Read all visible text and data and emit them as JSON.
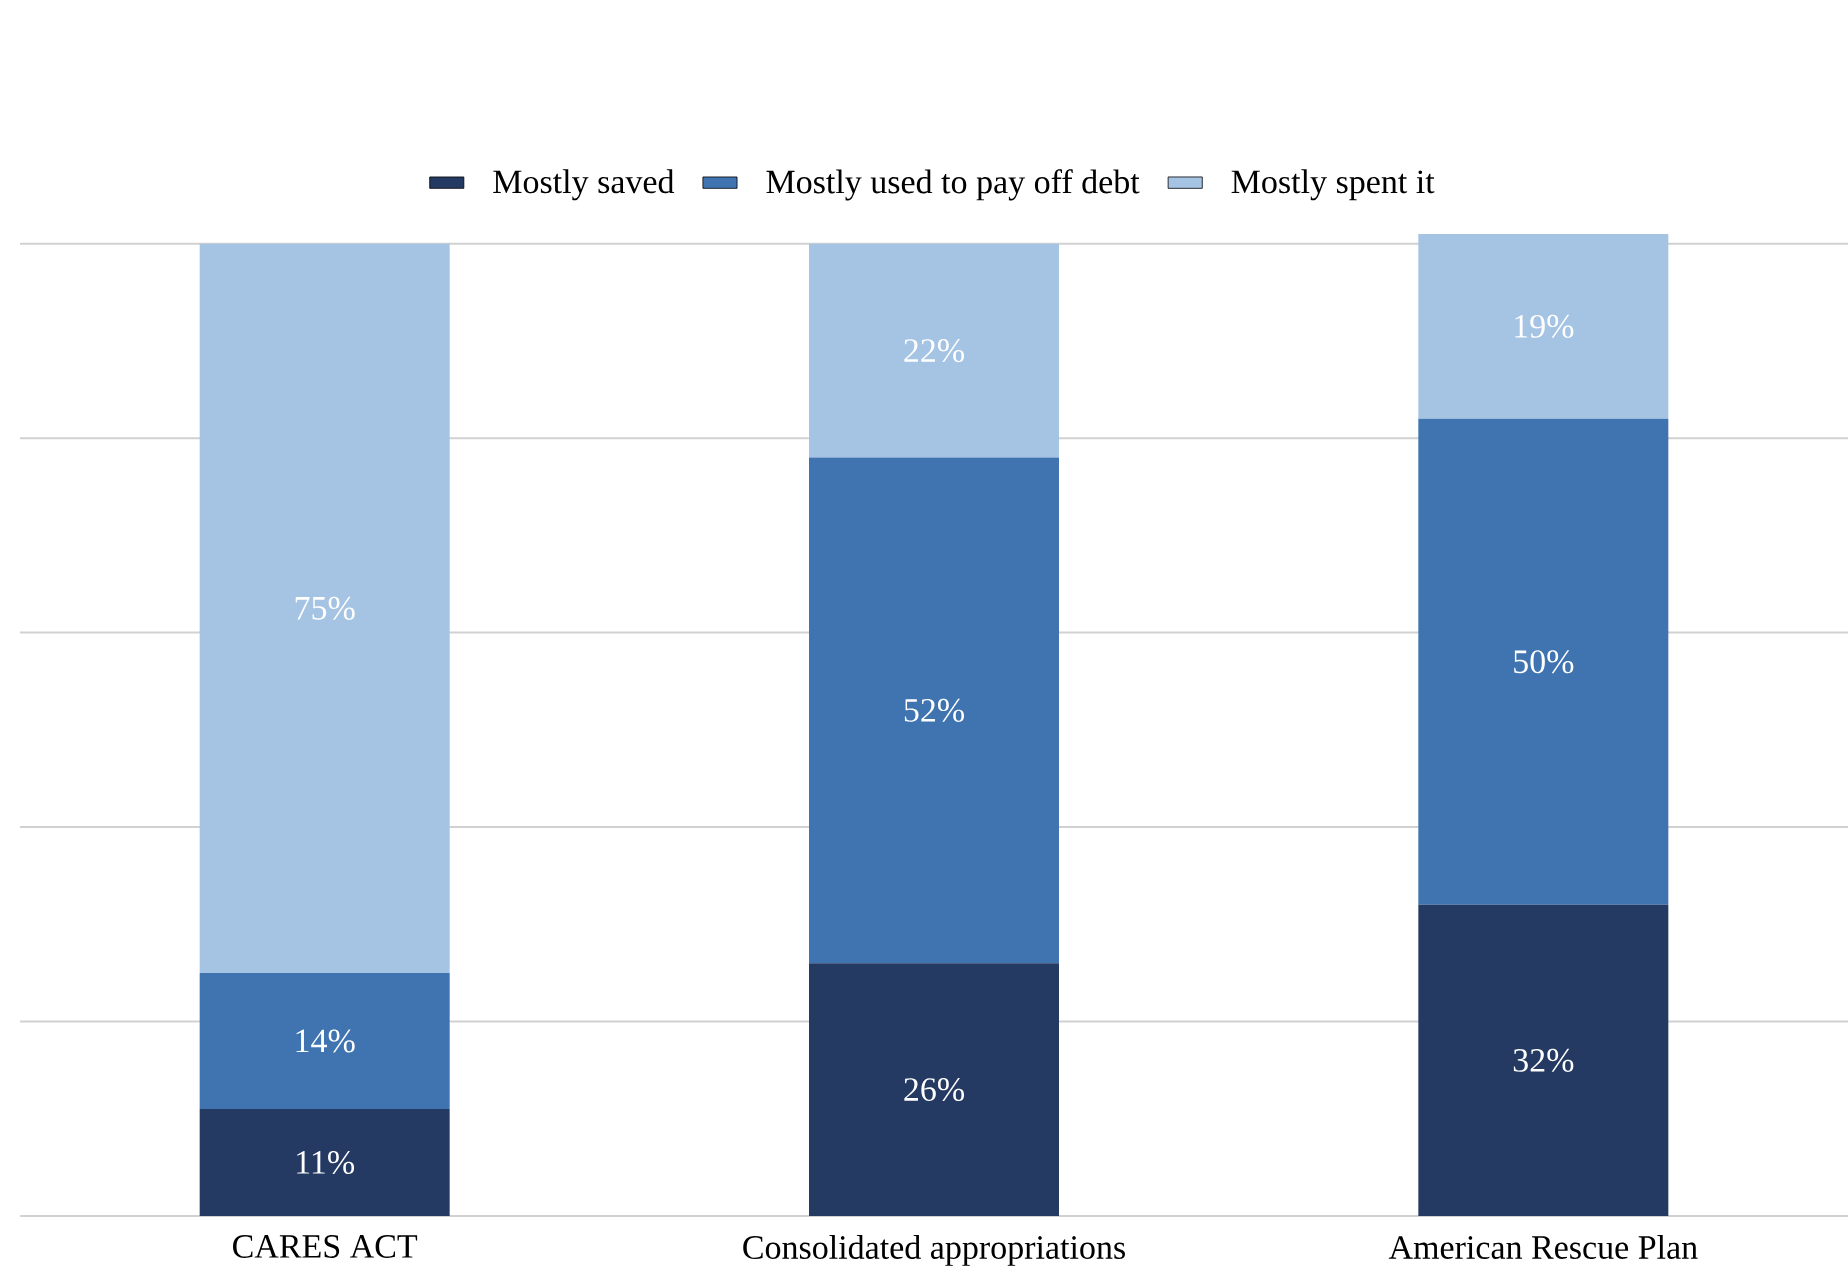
{
  "chart_data": {
    "type": "bar",
    "stacked": true,
    "categories": [
      "CARES ACT",
      "Consolidated appropriations",
      "American Rescue Plan"
    ],
    "series": [
      {
        "name": "Mostly saved",
        "color": "#243a63",
        "values": [
          11,
          26,
          32
        ],
        "value_labels": [
          "11%",
          "26%",
          "32%"
        ]
      },
      {
        "name": "Mostly used to pay off debt",
        "color": "#3f74b1",
        "values": [
          14,
          52,
          50
        ],
        "value_labels": [
          "14%",
          "52%",
          "50%"
        ]
      },
      {
        "name": "Mostly spent it",
        "color": "#a5c3e3",
        "values": [
          75,
          22,
          19
        ],
        "value_labels": [
          "75%",
          "22%",
          "19%"
        ]
      }
    ],
    "ylim": [
      0,
      101
    ],
    "yticks": [
      {
        "value": 0,
        "label": null
      },
      {
        "value": 20,
        "label": null
      },
      {
        "value": 40,
        "label": null
      },
      {
        "value": 60,
        "label": null
      },
      {
        "value": 80,
        "label": null
      },
      {
        "value": 100,
        "label": null
      }
    ],
    "tick_labels": "x",
    "grid": "y",
    "legend": "top"
  }
}
